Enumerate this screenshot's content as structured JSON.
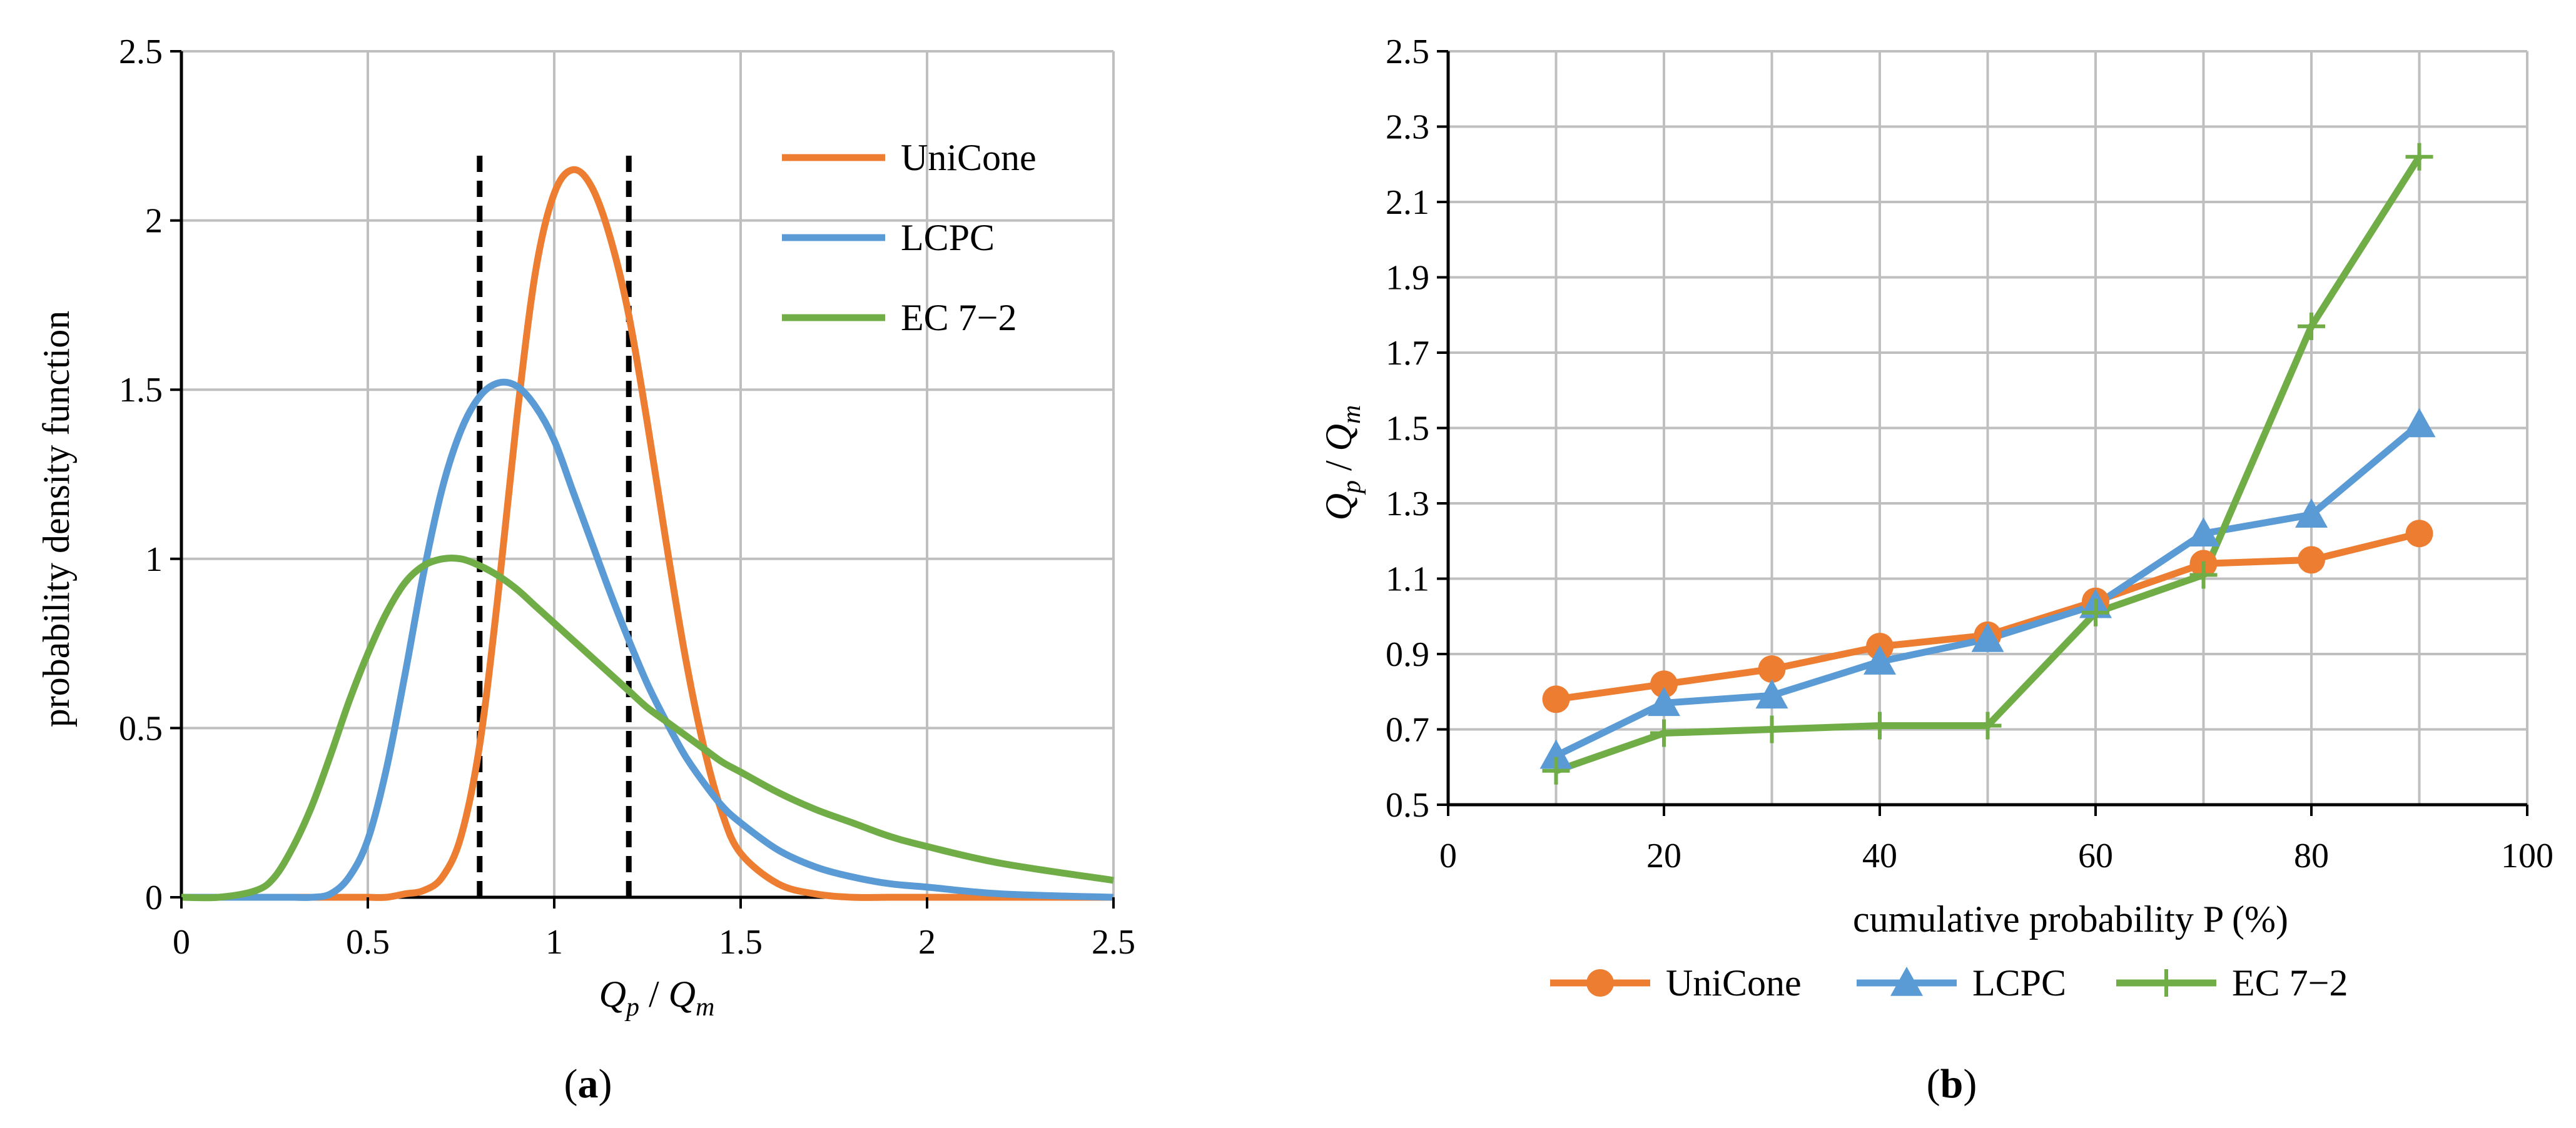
{
  "chart_data": [
    {
      "type": "line",
      "panel": "(a)",
      "panel_label_open": "(",
      "panel_label_letter": "a",
      "panel_label_close": ")",
      "xlabel": "Q_p / Q_m",
      "ylabel": "probability density function",
      "xlim": [
        0,
        2.5
      ],
      "ylim": [
        0,
        2.5
      ],
      "x_ticks": [
        "0",
        "0.5",
        "1",
        "1.5",
        "2",
        "2.5"
      ],
      "y_ticks": [
        "0",
        "0.5",
        "1",
        "1.5",
        "2",
        "2.5"
      ],
      "grid": true,
      "legend_position": "top-right",
      "x": [
        0,
        0.1,
        0.2,
        0.25,
        0.3,
        0.35,
        0.4,
        0.45,
        0.5,
        0.55,
        0.6,
        0.65,
        0.7,
        0.75,
        0.8,
        0.85,
        0.9,
        0.95,
        1.0,
        1.05,
        1.1,
        1.15,
        1.2,
        1.25,
        1.3,
        1.35,
        1.4,
        1.45,
        1.5,
        1.6,
        1.7,
        1.8,
        1.9,
        2.0,
        2.2,
        2.5
      ],
      "series": [
        {
          "name": "UniCone",
          "color": "#ed7d31",
          "values": [
            0,
            0,
            0,
            0,
            0,
            0,
            0,
            0,
            0,
            0,
            0.01,
            0.02,
            0.06,
            0.18,
            0.45,
            0.9,
            1.42,
            1.85,
            2.08,
            2.15,
            2.1,
            1.95,
            1.72,
            1.4,
            1.05,
            0.72,
            0.45,
            0.25,
            0.13,
            0.04,
            0.01,
            0,
            0,
            0,
            0,
            0
          ]
        },
        {
          "name": "LCPC",
          "color": "#5b9bd5",
          "values": [
            0,
            0,
            0,
            0,
            0,
            0,
            0.01,
            0.06,
            0.17,
            0.38,
            0.66,
            0.96,
            1.21,
            1.38,
            1.48,
            1.52,
            1.51,
            1.45,
            1.35,
            1.2,
            1.05,
            0.9,
            0.76,
            0.63,
            0.52,
            0.42,
            0.34,
            0.27,
            0.22,
            0.14,
            0.09,
            0.06,
            0.04,
            0.03,
            0.01,
            0
          ]
        },
        {
          "name": "EC 7−2",
          "color": "#70ad47",
          "values": [
            0,
            0,
            0.02,
            0.06,
            0.15,
            0.27,
            0.42,
            0.58,
            0.72,
            0.84,
            0.93,
            0.98,
            1.0,
            1.0,
            0.98,
            0.95,
            0.91,
            0.86,
            0.81,
            0.76,
            0.71,
            0.66,
            0.61,
            0.56,
            0.52,
            0.48,
            0.44,
            0.4,
            0.37,
            0.31,
            0.26,
            0.22,
            0.18,
            0.15,
            0.1,
            0.05
          ]
        }
      ],
      "reference_lines": [
        {
          "x": 0.8,
          "y_top": 2.2,
          "style": "dashed"
        },
        {
          "x": 1.2,
          "y_top": 2.2,
          "style": "dashed"
        }
      ]
    },
    {
      "type": "line",
      "panel": "(b)",
      "panel_label_open": "(",
      "panel_label_letter": "b",
      "panel_label_close": ")",
      "xlabel": "cumulative probability P (%)",
      "ylabel": "Q_p / Q_m",
      "xlim": [
        0,
        100
      ],
      "ylim": [
        0.5,
        2.5
      ],
      "x_ticks": [
        "0",
        "20",
        "40",
        "60",
        "80",
        "100"
      ],
      "y_ticks": [
        "0.5",
        "0.7",
        "0.9",
        "1.1",
        "1.3",
        "1.5",
        "1.7",
        "1.9",
        "2.1",
        "2.3",
        "2.5"
      ],
      "grid": true,
      "legend_position": "bottom",
      "x": [
        10,
        20,
        30,
        40,
        50,
        60,
        70,
        80,
        90
      ],
      "series": [
        {
          "name": "UniCone",
          "color": "#ed7d31",
          "marker": "circle",
          "values": [
            0.78,
            0.82,
            0.86,
            0.92,
            0.95,
            1.04,
            1.14,
            1.15,
            1.22
          ]
        },
        {
          "name": "LCPC",
          "color": "#5b9bd5",
          "marker": "triangle",
          "values": [
            0.63,
            0.77,
            0.79,
            0.88,
            0.94,
            1.03,
            1.22,
            1.27,
            1.51
          ]
        },
        {
          "name": "EC 7−2",
          "color": "#70ad47",
          "marker": "plus",
          "values": [
            0.59,
            0.69,
            0.7,
            0.71,
            0.71,
            1.01,
            1.11,
            1.77,
            2.22
          ]
        }
      ]
    }
  ]
}
